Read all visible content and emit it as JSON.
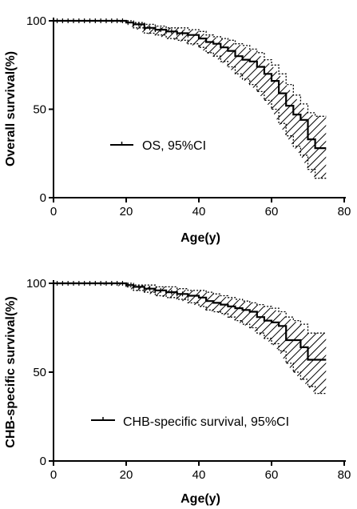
{
  "chart_data": [
    {
      "type": "line",
      "subtype": "kaplan-meier-step",
      "xlabel": "Age(y)",
      "ylabel": "Overall survival(%)",
      "xlim": [
        0,
        80
      ],
      "ylim": [
        0,
        100
      ],
      "xticks": [
        "0",
        "20",
        "40",
        "60",
        "80"
      ],
      "yticks": [
        "0",
        "50",
        "100"
      ],
      "grid": false,
      "legend_position": "center-left",
      "legend": "OS, 95%CI",
      "series": [
        {
          "name": "OS, 95%CI",
          "x": [
            0,
            10,
            20,
            22,
            25,
            28,
            31,
            34,
            37,
            40,
            42,
            44,
            46,
            48,
            50,
            52,
            54,
            56,
            58,
            60,
            62,
            64,
            66,
            68,
            70,
            72,
            75
          ],
          "y": [
            100,
            100,
            99,
            98,
            96,
            95,
            94,
            93,
            92,
            90,
            88,
            87,
            85,
            83,
            80,
            78,
            77,
            74,
            70,
            66,
            59,
            52,
            47,
            44,
            33,
            28,
            28
          ],
          "ci_lower": [
            100,
            100,
            99,
            96,
            93,
            92,
            90,
            89,
            87,
            85,
            82,
            80,
            77,
            74,
            70,
            67,
            64,
            60,
            55,
            50,
            42,
            35,
            29,
            24,
            16,
            11,
            11
          ],
          "ci_upper": [
            100,
            100,
            100,
            99,
            98,
            97,
            96,
            96,
            95,
            94,
            92,
            91,
            90,
            89,
            87,
            86,
            84,
            82,
            78,
            75,
            70,
            64,
            58,
            53,
            48,
            46,
            46
          ]
        }
      ]
    },
    {
      "type": "line",
      "subtype": "kaplan-meier-step",
      "xlabel": "Age(y)",
      "ylabel": "CHB-specific survival(%)",
      "xlim": [
        0,
        80
      ],
      "ylim": [
        0,
        100
      ],
      "xticks": [
        "0",
        "20",
        "40",
        "60",
        "80"
      ],
      "yticks": [
        "0",
        "50",
        "100"
      ],
      "grid": false,
      "legend_position": "bottom-right",
      "legend": "CHB-specific survival, 95%CI",
      "series": [
        {
          "name": "CHB-specific survival, 95%CI",
          "x": [
            0,
            10,
            20,
            22,
            25,
            28,
            31,
            34,
            37,
            40,
            42,
            44,
            46,
            48,
            50,
            52,
            54,
            56,
            58,
            60,
            62,
            64,
            66,
            68,
            70,
            72,
            75
          ],
          "y": [
            100,
            100,
            99,
            98,
            97,
            96,
            95,
            94,
            93,
            92,
            90,
            89,
            88,
            87,
            86,
            85,
            84,
            81,
            79,
            78,
            76,
            68,
            68,
            64,
            57,
            57,
            57
          ],
          "ci_lower": [
            100,
            100,
            98,
            96,
            95,
            93,
            92,
            91,
            89,
            87,
            85,
            84,
            83,
            81,
            79,
            77,
            75,
            72,
            69,
            66,
            62,
            55,
            50,
            46,
            42,
            38,
            38
          ],
          "ci_upper": [
            100,
            100,
            100,
            99,
            99,
            98,
            98,
            97,
            96,
            96,
            95,
            94,
            93,
            92,
            91,
            90,
            89,
            88,
            87,
            86,
            84,
            81,
            79,
            77,
            72,
            72,
            72
          ]
        }
      ]
    }
  ]
}
